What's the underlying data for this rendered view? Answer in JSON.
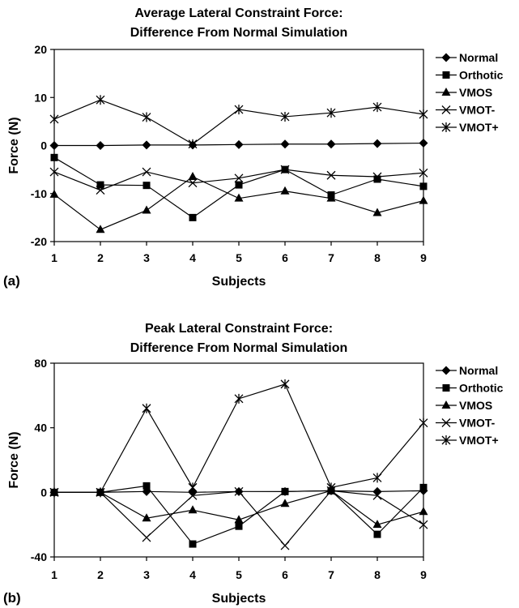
{
  "chart_data": [
    {
      "type": "line",
      "panel_label": "(a)",
      "title_line1": "Average Lateral Constraint Force:",
      "title_line2": "Difference From Normal Simulation",
      "xlabel": "Subjects",
      "ylabel": "Force (N)",
      "ylim": [
        -20,
        20
      ],
      "yticks": [
        "20",
        "10",
        "0",
        "-10",
        "-20"
      ],
      "x": [
        "1",
        "2",
        "3",
        "4",
        "5",
        "6",
        "7",
        "8",
        "9"
      ],
      "grid": false,
      "legend_position": "right",
      "series": [
        {
          "name": "Normal",
          "marker": "diamond",
          "values": [
            0,
            0,
            0.1,
            0.1,
            0.2,
            0.3,
            0.3,
            0.4,
            0.5
          ]
        },
        {
          "name": "Orthotic",
          "marker": "square",
          "values": [
            -2.5,
            -8.2,
            -8.3,
            -15,
            -8.2,
            -5,
            -10.3,
            -7,
            -8.5
          ]
        },
        {
          "name": "VMOS",
          "marker": "triangle",
          "values": [
            -10.2,
            -17.5,
            -13.5,
            -6.5,
            -11,
            -9.5,
            -11,
            -14,
            -11.5
          ]
        },
        {
          "name": "VMOT-",
          "marker": "x",
          "values": [
            -5.5,
            -9.3,
            -5.5,
            -7.8,
            -6.8,
            -5,
            -6.2,
            -6.5,
            -5.7
          ]
        },
        {
          "name": "VMOT+",
          "marker": "star",
          "values": [
            5.5,
            9.5,
            5.9,
            0.3,
            7.5,
            6,
            6.8,
            8,
            6.5
          ]
        }
      ]
    },
    {
      "type": "line",
      "panel_label": "(b)",
      "title_line1": "Peak Lateral Constraint Force:",
      "title_line2": "Difference From Normal Simulation",
      "xlabel": "Subjects",
      "ylabel": "Force (N)",
      "ylim": [
        -40,
        80
      ],
      "yticks": [
        "80",
        "40",
        "0",
        "-40"
      ],
      "x": [
        "1",
        "2",
        "3",
        "4",
        "5",
        "6",
        "7",
        "8",
        "9"
      ],
      "grid": false,
      "legend_position": "right",
      "series": [
        {
          "name": "Normal",
          "marker": "diamond",
          "values": [
            0,
            0,
            0.5,
            0,
            0.5,
            0.5,
            1,
            0.5,
            1
          ]
        },
        {
          "name": "Orthotic",
          "marker": "square",
          "values": [
            0,
            0,
            4,
            -32,
            -21,
            0.5,
            1,
            -26,
            3
          ]
        },
        {
          "name": "VMOS",
          "marker": "triangle",
          "values": [
            0,
            0,
            -16,
            -11,
            -17,
            -7,
            1,
            -20,
            -12
          ]
        },
        {
          "name": "VMOT-",
          "marker": "x",
          "values": [
            0,
            0,
            -28,
            -2,
            0.5,
            -33,
            1,
            -2,
            -20
          ]
        },
        {
          "name": "VMOT+",
          "marker": "star",
          "values": [
            0,
            0,
            52,
            3,
            58,
            67,
            3,
            9,
            43
          ]
        }
      ]
    }
  ]
}
